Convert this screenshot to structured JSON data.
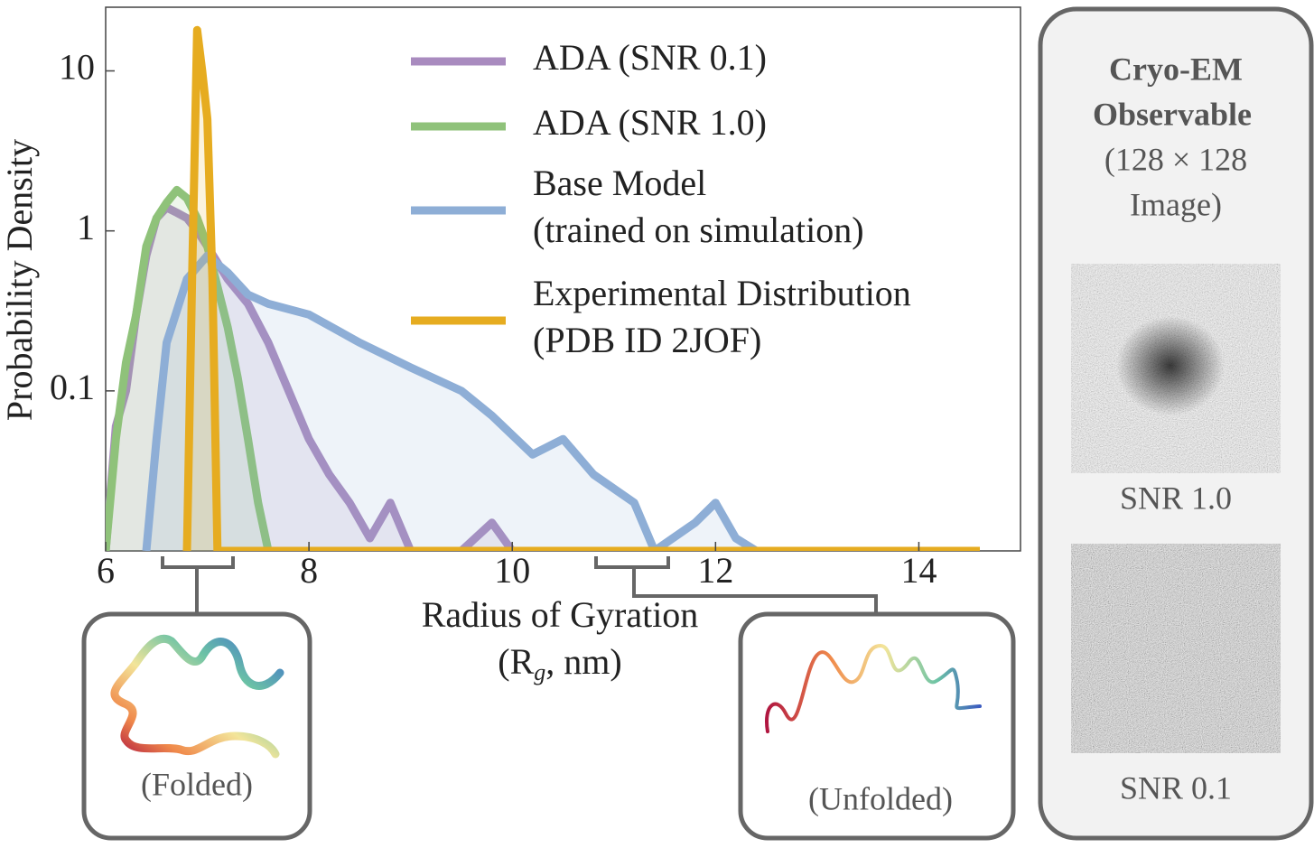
{
  "chart_data": {
    "type": "line",
    "ylabel": "Probability Density",
    "xlabel": [
      "Radius of Gyration",
      "(R",
      "g",
      ", nm)"
    ],
    "xlim": [
      6,
      15
    ],
    "xticks": [
      6,
      8,
      10,
      12,
      14
    ],
    "ylim": [
      0.01,
      25
    ],
    "yticks": [
      10,
      1,
      0.1
    ],
    "log_y": true,
    "series": [
      {
        "name": "ADA (SNR 0.1)",
        "color": "#a98bbf",
        "x": [
          6.0,
          6.1,
          6.2,
          6.3,
          6.4,
          6.5,
          6.6,
          6.7,
          6.8,
          6.9,
          7.0,
          7.2,
          7.4,
          7.6,
          7.8,
          8.0,
          8.2,
          8.4,
          8.6,
          8.8,
          9.0,
          9.5,
          9.8,
          10.0
        ],
        "values": [
          0.01,
          0.06,
          0.1,
          0.3,
          0.7,
          1.2,
          1.4,
          1.3,
          1.2,
          1.0,
          0.8,
          0.5,
          0.35,
          0.2,
          0.1,
          0.05,
          0.03,
          0.02,
          0.012,
          0.02,
          0.01,
          0.01,
          0.015,
          0.01
        ]
      },
      {
        "name": "ADA (SNR 1.0)",
        "color": "#8fc27a",
        "x": [
          6.0,
          6.1,
          6.2,
          6.3,
          6.4,
          6.5,
          6.6,
          6.7,
          6.8,
          6.9,
          7.0,
          7.2,
          7.3,
          7.4,
          7.5,
          7.6
        ],
        "values": [
          0.01,
          0.05,
          0.15,
          0.3,
          0.8,
          1.2,
          1.5,
          1.8,
          1.6,
          1.2,
          0.8,
          0.25,
          0.12,
          0.05,
          0.02,
          0.01
        ]
      },
      {
        "name": "Base Model\n(trained on simulation)",
        "color": "#8eaed6",
        "x": [
          6.4,
          6.5,
          6.6,
          6.8,
          7.0,
          7.2,
          7.4,
          7.6,
          8.0,
          8.5,
          9.0,
          9.5,
          9.8,
          10.2,
          10.5,
          10.8,
          11.2,
          11.4,
          11.8,
          12.0,
          12.2,
          12.4,
          12.6
        ],
        "values": [
          0.01,
          0.05,
          0.2,
          0.5,
          0.7,
          0.55,
          0.4,
          0.35,
          0.3,
          0.2,
          0.14,
          0.1,
          0.07,
          0.04,
          0.05,
          0.03,
          0.02,
          0.01,
          0.015,
          0.02,
          0.012,
          0.01,
          0.01
        ]
      },
      {
        "name": "Experimental Distribution\n(PDB ID 2JOF)",
        "color": "#e6ac20",
        "x": [
          6.8,
          6.85,
          6.9,
          6.95,
          7.0,
          7.05,
          7.1,
          14.6
        ],
        "values": [
          0.01,
          0.5,
          18,
          10,
          5,
          0.5,
          0.01,
          0.01
        ]
      }
    ]
  },
  "insets": {
    "folded": "(Folded)",
    "unfolded": "(Unfolded)"
  },
  "side_panel": {
    "title": [
      "Cryo-EM",
      "Observable"
    ],
    "subtitle": [
      "(128 × 128",
      "Image)"
    ],
    "images": [
      "SNR 1.0",
      "SNR 0.1"
    ]
  }
}
